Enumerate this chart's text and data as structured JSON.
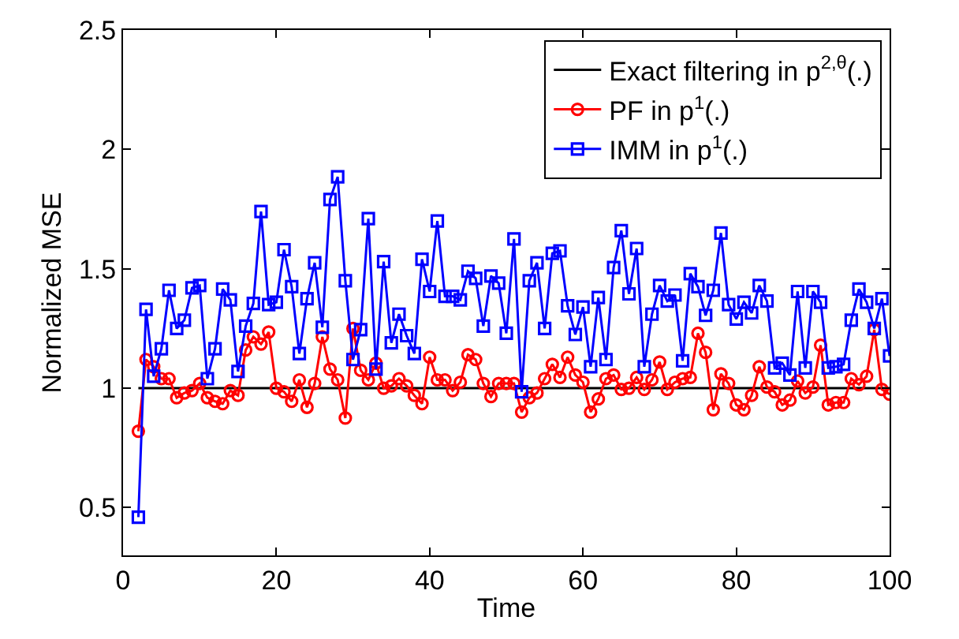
{
  "chart_data": {
    "type": "line",
    "xlabel": "Time",
    "ylabel": "Normalized MSE",
    "xlim": [
      0,
      100
    ],
    "xticks": [
      0,
      20,
      40,
      60,
      80,
      100
    ],
    "ylim": [
      0.3,
      2.5
    ],
    "yticks": [
      0.5,
      1,
      1.5,
      2,
      2.5
    ],
    "legend": "top right",
    "series": [
      {
        "name": "Exact filtering in p$^{2,θ}$(.)",
        "color": "#000000",
        "marker": "none",
        "x": [
          2,
          100
        ],
        "values": [
          1,
          1
        ]
      },
      {
        "name": "PF in p$^{1}$(.)",
        "color": "#ff0000",
        "marker": "circle",
        "x": [
          2,
          3,
          4,
          5,
          6,
          7,
          8,
          9,
          10,
          11,
          12,
          13,
          14,
          15,
          16,
          17,
          18,
          19,
          20,
          21,
          22,
          23,
          24,
          25,
          26,
          27,
          28,
          29,
          30,
          31,
          32,
          33,
          34,
          35,
          36,
          37,
          38,
          39,
          40,
          41,
          42,
          43,
          44,
          45,
          46,
          47,
          48,
          49,
          50,
          51,
          52,
          53,
          54,
          55,
          56,
          57,
          58,
          59,
          60,
          61,
          62,
          63,
          64,
          65,
          66,
          67,
          68,
          69,
          70,
          71,
          72,
          73,
          74,
          75,
          76,
          77,
          78,
          79,
          80,
          81,
          82,
          83,
          84,
          85,
          86,
          87,
          88,
          89,
          90,
          91,
          92,
          93,
          94,
          95,
          96,
          97,
          98,
          99,
          100
        ],
        "values": [
          0.82,
          1.12,
          1.09,
          1.04,
          1.04,
          0.96,
          0.98,
          0.99,
          1.02,
          0.96,
          0.945,
          0.935,
          0.99,
          0.97,
          1.16,
          1.215,
          1.185,
          1.235,
          1.0,
          0.985,
          0.945,
          1.035,
          0.92,
          1.02,
          1.215,
          1.08,
          1.035,
          0.875,
          1.25,
          1.075,
          1.035,
          1.105,
          1.0,
          1.01,
          1.04,
          1.01,
          0.97,
          0.935,
          1.13,
          1.035,
          1.035,
          0.99,
          1.025,
          1.14,
          1.12,
          1.02,
          0.965,
          1.02,
          1.02,
          1.02,
          0.9,
          0.96,
          0.98,
          1.04,
          1.1,
          1.045,
          1.13,
          1.055,
          1.025,
          0.9,
          0.955,
          1.04,
          1.055,
          0.995,
          1.0,
          1.045,
          0.995,
          1.035,
          1.11,
          0.995,
          1.025,
          1.04,
          1.045,
          1.23,
          1.15,
          0.91,
          1.06,
          1.02,
          0.93,
          0.91,
          0.97,
          1.09,
          1.005,
          0.985,
          0.93,
          0.95,
          1.03,
          0.98,
          1.005,
          1.18,
          0.93,
          0.94,
          0.94,
          1.04,
          1.015,
          1.05,
          1.245,
          0.995,
          0.975
        ]
      },
      {
        "name": "IMM in p$^{1}$(.)",
        "color": "#0000ff",
        "marker": "square",
        "x": [
          2,
          3,
          4,
          5,
          6,
          7,
          8,
          9,
          10,
          11,
          12,
          13,
          14,
          15,
          16,
          17,
          18,
          19,
          20,
          21,
          22,
          23,
          24,
          25,
          26,
          27,
          28,
          29,
          30,
          31,
          32,
          33,
          34,
          35,
          36,
          37,
          38,
          39,
          40,
          41,
          42,
          43,
          44,
          45,
          46,
          47,
          48,
          49,
          50,
          51,
          52,
          53,
          54,
          55,
          56,
          57,
          58,
          59,
          60,
          61,
          62,
          63,
          64,
          65,
          66,
          67,
          68,
          69,
          70,
          71,
          72,
          73,
          74,
          75,
          76,
          77,
          78,
          79,
          80,
          81,
          82,
          83,
          84,
          85,
          86,
          87,
          88,
          89,
          90,
          91,
          92,
          93,
          94,
          95,
          96,
          97,
          98,
          99,
          100
        ],
        "values": [
          0.46,
          1.33,
          1.05,
          1.165,
          1.41,
          1.25,
          1.285,
          1.42,
          1.43,
          1.04,
          1.165,
          1.415,
          1.37,
          1.07,
          1.26,
          1.355,
          1.74,
          1.35,
          1.36,
          1.58,
          1.425,
          1.145,
          1.375,
          1.525,
          1.255,
          1.79,
          1.885,
          1.45,
          1.12,
          1.245,
          1.71,
          1.08,
          1.53,
          1.19,
          1.31,
          1.22,
          1.145,
          1.54,
          1.405,
          1.7,
          1.385,
          1.385,
          1.37,
          1.49,
          1.46,
          1.26,
          1.47,
          1.44,
          1.23,
          1.625,
          0.985,
          1.45,
          1.525,
          1.25,
          1.565,
          1.575,
          1.345,
          1.225,
          1.34,
          1.09,
          1.38,
          1.12,
          1.505,
          1.66,
          1.395,
          1.585,
          1.09,
          1.31,
          1.43,
          1.365,
          1.39,
          1.115,
          1.48,
          1.425,
          1.305,
          1.41,
          1.65,
          1.35,
          1.29,
          1.36,
          1.315,
          1.43,
          1.365,
          1.085,
          1.105,
          1.055,
          1.405,
          1.085,
          1.405,
          1.36,
          1.085,
          1.09,
          1.1,
          1.285,
          1.415,
          1.36,
          1.25,
          1.375,
          1.135
        ]
      }
    ]
  }
}
